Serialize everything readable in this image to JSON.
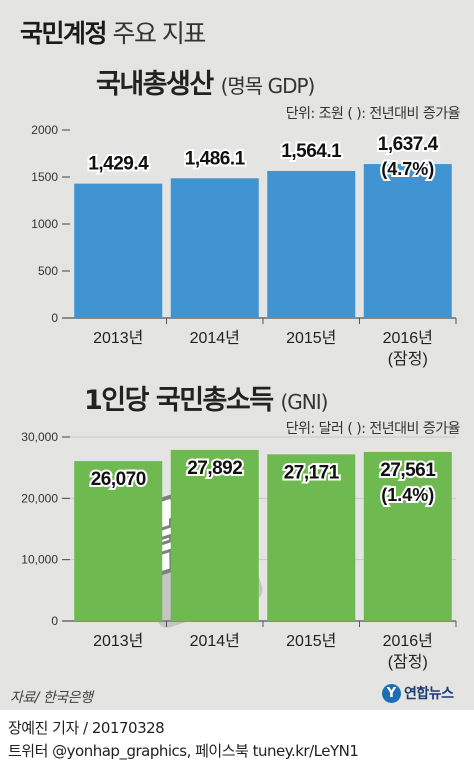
{
  "title": {
    "bold": "국민계정",
    "light": " 주요 지표"
  },
  "chart_data": [
    {
      "type": "bar",
      "title": "국내총생산",
      "subtitle": "(명목 GDP)",
      "unit_note": "단위: 조원    ( ): 전년대비 증가율",
      "categories": [
        "2013년",
        "2014년",
        "2015년",
        "2016년"
      ],
      "category_notes": [
        "",
        "",
        "",
        "(잠정)"
      ],
      "values": [
        1429.4,
        1486.1,
        1564.1,
        1637.4
      ],
      "value_labels": [
        "1,429.4",
        "1,486.1",
        "1,564.1",
        "1,637.4"
      ],
      "growth_labels": [
        "",
        "",
        "",
        "(4.7%)"
      ],
      "yticks": [
        0,
        500,
        1000,
        1500,
        2000
      ],
      "ytick_labels": [
        "0",
        "500",
        "1000",
        "1500",
        "2000"
      ],
      "ylim": [
        0,
        2000
      ],
      "grid": false,
      "colors": {
        "bar": "#3f94d1",
        "title": "#1c6fb3",
        "label_bg": "#ffffff"
      }
    },
    {
      "type": "bar",
      "title": "1인당 국민총소득",
      "subtitle": "(GNI)",
      "unit_note": "단위: 달러    ( ): 전년대비 증가율",
      "categories": [
        "2013년",
        "2014년",
        "2015년",
        "2016년"
      ],
      "category_notes": [
        "",
        "",
        "",
        "(잠정)"
      ],
      "values": [
        26070,
        27892,
        27171,
        27561
      ],
      "value_labels": [
        "26,070",
        "27,892",
        "27,171",
        "27,561"
      ],
      "growth_labels": [
        "",
        "",
        "",
        "(1.4%)"
      ],
      "yticks": [
        0,
        10000,
        20000,
        30000
      ],
      "ytick_labels": [
        "0",
        "10,000",
        "20,000",
        "30,000"
      ],
      "ylim": [
        0,
        30000
      ],
      "grid": true,
      "colors": {
        "bar": "#6eb950",
        "title": "#3f8e2a",
        "label_bg": "#ffffff"
      }
    }
  ],
  "icon": "won-currency-icon",
  "footer": {
    "source": "자료/ 한국은행",
    "logo_mark": "Y",
    "logo_name": "연합뉴스",
    "credit_line1": "장예진 기자 / 20170328",
    "credit_line2": "트위터 @yonhap_graphics, 페이스북 tuney.kr/LeYN1"
  }
}
